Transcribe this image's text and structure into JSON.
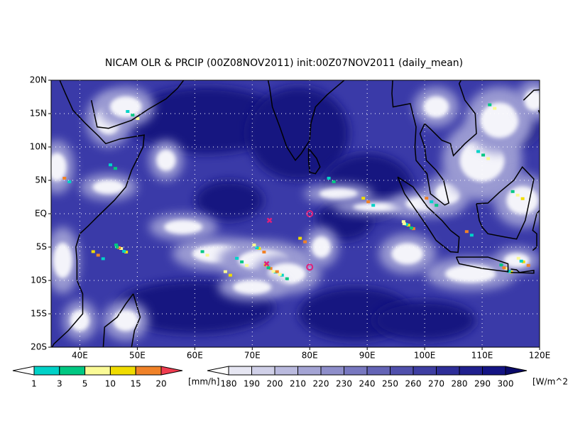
{
  "title": "NICAM OLR & PRCIP (00Z08NOV2011) init:00Z07NOV2011 (daily_mean)",
  "map": {
    "lonlim": [
      35,
      120
    ],
    "latlim": [
      -20,
      20
    ],
    "lon_ticks": [
      {
        "value": 40,
        "label": "40E"
      },
      {
        "value": 50,
        "label": "50E"
      },
      {
        "value": 60,
        "label": "60E"
      },
      {
        "value": 70,
        "label": "70E"
      },
      {
        "value": 80,
        "label": "80E"
      },
      {
        "value": 90,
        "label": "90E"
      },
      {
        "value": 100,
        "label": "100E"
      },
      {
        "value": 110,
        "label": "110E"
      },
      {
        "value": 120,
        "label": "120E"
      }
    ],
    "lat_ticks": [
      {
        "value": 20,
        "label": "20N"
      },
      {
        "value": 15,
        "label": "15N"
      },
      {
        "value": 10,
        "label": "10N"
      },
      {
        "value": 5,
        "label": "5N"
      },
      {
        "value": 0,
        "label": "EQ"
      },
      {
        "value": -5,
        "label": "5S"
      },
      {
        "value": -10,
        "label": "10S"
      },
      {
        "value": -15,
        "label": "15S"
      },
      {
        "value": -20,
        "label": "20S"
      }
    ]
  },
  "precip_colorbar": {
    "levels": [
      1,
      3,
      5,
      10,
      15,
      20
    ],
    "colors": [
      "#ffffff",
      "#00d2c8",
      "#00c882",
      "#fafa96",
      "#f0dc00",
      "#f08228",
      "#f03c50"
    ],
    "unit": "[mm/h]"
  },
  "olr_colorbar": {
    "levels": [
      180,
      190,
      200,
      210,
      220,
      230,
      240,
      250,
      260,
      270,
      280,
      290,
      300
    ],
    "colors": [
      "#ffffff",
      "#e6e6f2",
      "#d0d0e8",
      "#babade",
      "#a4a4d4",
      "#8e8eca",
      "#7878c0",
      "#6464b6",
      "#5050ac",
      "#3e3ea2",
      "#2e2e98",
      "#20208e",
      "#141484",
      "#0a0a6a"
    ],
    "unit": "[W/m^2]"
  }
}
